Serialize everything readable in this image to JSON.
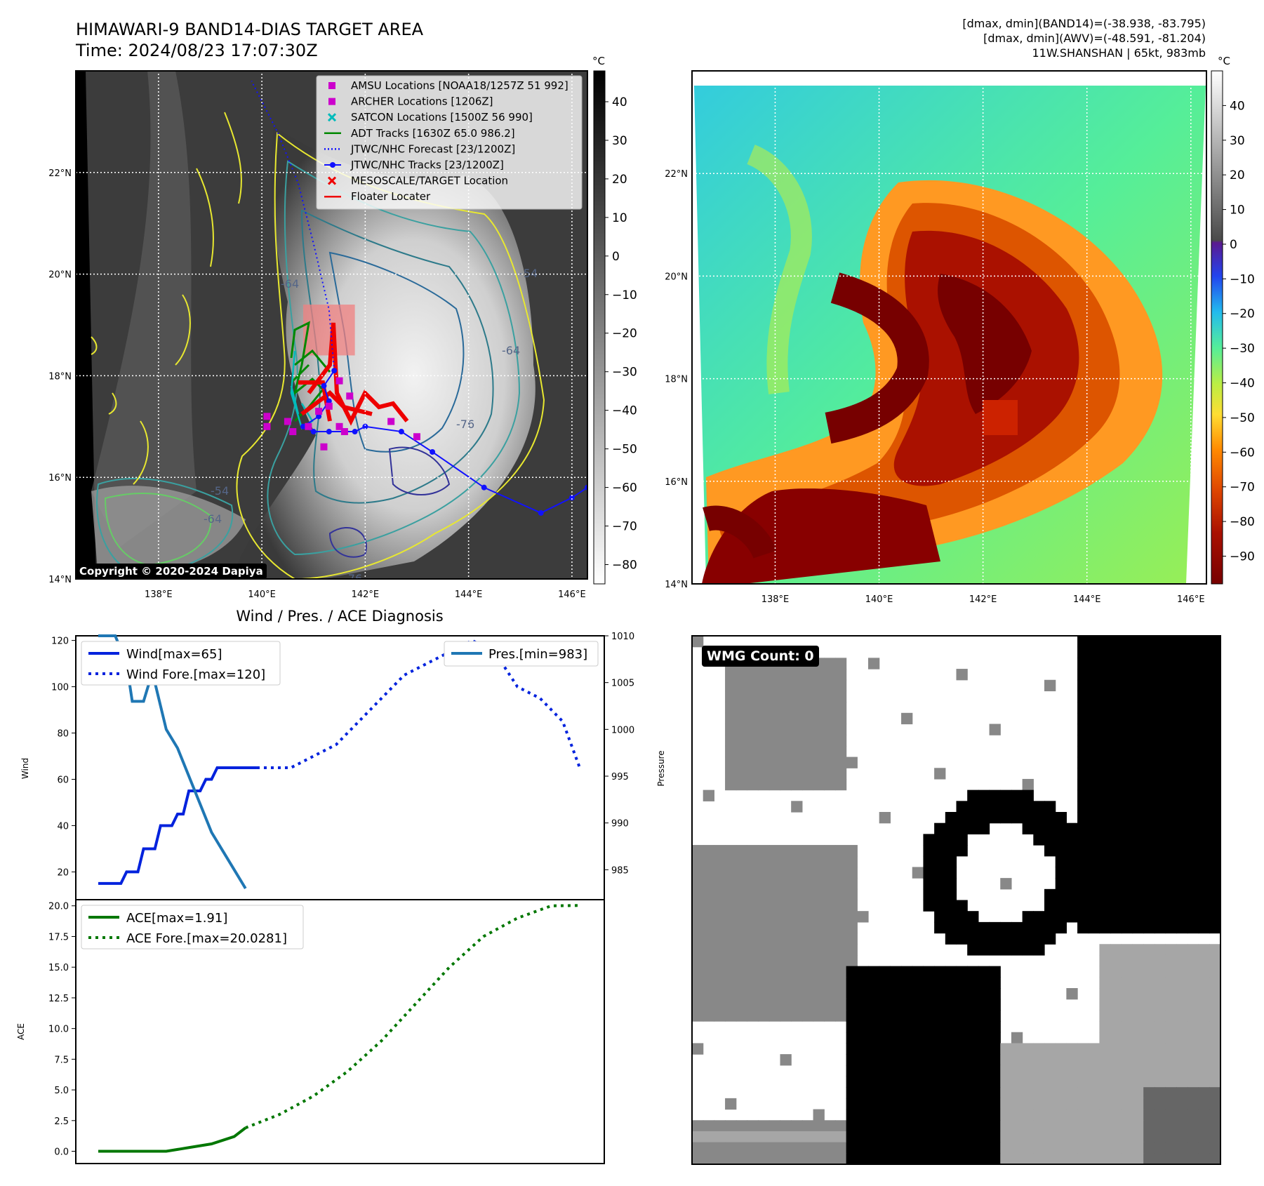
{
  "header": {
    "title": "HIMAWARI-9 BAND14-DIAS TARGET AREA",
    "time": "Time: 2024/08/23 17:07:30Z",
    "dmax_band14": "[dmax, dmin](BAND14)=(-38.938, -83.795)",
    "dmax_awv": "[dmax, dmin](AWV)=(-48.591, -81.204)",
    "storm": "11W.SHANSHAN | 65kt, 983mb"
  },
  "copyright": "Copyright © 2020-2024 Dapiya",
  "wmg_label": "WMG Count: 0",
  "colorbar_unit": "°C",
  "colors": {
    "wind": "#0022dd",
    "pressure": "#1f77b4",
    "ace": "#007700",
    "track": "#1111ff",
    "floater": "#ee0000",
    "amsu": "#cc00cc",
    "satcon": "#00bbbb",
    "adt": "#008800"
  },
  "chart_data": [
    {
      "type": "map",
      "name": "panel_band14",
      "xticks": [
        "138°E",
        "140°E",
        "142°E",
        "144°E",
        "146°E"
      ],
      "yticks": [
        "22°N",
        "20°N",
        "18°N",
        "16°N",
        "14°N"
      ],
      "lon_range": [
        136.4,
        146.3
      ],
      "lat_range": [
        14,
        24
      ],
      "colorbar": {
        "ticks": [
          40,
          30,
          20,
          10,
          0,
          -10,
          -20,
          -30,
          -40,
          -50,
          -60,
          -70,
          -80
        ],
        "range": [
          -85,
          48
        ],
        "colormap": "gray-reversed"
      },
      "legend": [
        {
          "label": "AMSU Locations [NOAA18/1257Z 51 992]",
          "marker": "square",
          "color": "#cc00cc"
        },
        {
          "label": "ARCHER Locations [1206Z]",
          "marker": "square",
          "color": "#cc00cc"
        },
        {
          "label": "SATCON Locations [1500Z 56 990]",
          "marker": "x",
          "color": "#00bbbb"
        },
        {
          "label": "ADT Tracks [1630Z 65.0 986.2]",
          "marker": "line",
          "color": "#008800"
        },
        {
          "label": "JTWC/NHC Forecast [23/1200Z]",
          "marker": "dotted",
          "color": "#1111ff"
        },
        {
          "label": "JTWC/NHC Tracks [23/1200Z]",
          "marker": "line-dot",
          "color": "#1111ff"
        },
        {
          "label": "MESOSCALE/TARGET Location",
          "marker": "x",
          "color": "#ee0000"
        },
        {
          "label": "Floater Locater",
          "marker": "line",
          "color": "#ee0000"
        }
      ],
      "contour_labels": [
        "-76",
        "-76",
        "-64",
        "-64",
        "-64",
        "-54",
        "-54"
      ],
      "jtwc_track": [
        [
          146.3,
          15.8
        ],
        [
          146.0,
          15.6
        ],
        [
          145.4,
          15.3
        ],
        [
          144.3,
          15.8
        ],
        [
          143.3,
          16.5
        ],
        [
          142.7,
          16.9
        ],
        [
          142.0,
          17.0
        ],
        [
          141.8,
          16.9
        ],
        [
          141.3,
          16.9
        ],
        [
          141.0,
          16.9
        ],
        [
          140.8,
          17.0
        ],
        [
          141.1,
          17.2
        ],
        [
          141.3,
          17.5
        ],
        [
          141.2,
          17.8
        ],
        [
          141.4,
          18.1
        ]
      ],
      "jtwc_forecast": [
        [
          141.4,
          18.1
        ],
        [
          141.3,
          19.3
        ],
        [
          141.0,
          20.6
        ],
        [
          140.7,
          21.8
        ],
        [
          140.3,
          22.8
        ],
        [
          139.8,
          23.8
        ]
      ],
      "amsu_points": [
        [
          140.1,
          17.2
        ],
        [
          140.1,
          17.0
        ],
        [
          140.6,
          16.9
        ],
        [
          140.9,
          17.0
        ],
        [
          141.1,
          17.3
        ],
        [
          141.3,
          17.4
        ],
        [
          141.5,
          17.9
        ],
        [
          141.7,
          17.6
        ],
        [
          141.5,
          17.0
        ],
        [
          141.6,
          16.9
        ],
        [
          141.2,
          16.6
        ],
        [
          142.5,
          17.1
        ],
        [
          143.0,
          16.8
        ],
        [
          140.5,
          17.1
        ]
      ],
      "target_box": [
        [
          140.8,
          18.4
        ],
        [
          141.8,
          19.4
        ]
      ]
    },
    {
      "type": "map",
      "name": "panel_awv",
      "xticks": [
        "138°E",
        "140°E",
        "142°E",
        "144°E",
        "146°E"
      ],
      "yticks": [
        "22°N",
        "20°N",
        "18°N",
        "16°N",
        "14°N"
      ],
      "colorbar": {
        "ticks": [
          40,
          30,
          20,
          10,
          0,
          -10,
          -20,
          -30,
          -40,
          -50,
          -60,
          -70,
          -80,
          -90
        ],
        "range": [
          -98,
          50
        ],
        "colormap": "awv"
      }
    },
    {
      "type": "line",
      "title": "Wind / Pres. / ACE Diagnosis",
      "ylabel": "Wind",
      "ylabel2": "Pressure",
      "yticks": [
        20,
        40,
        60,
        80,
        100,
        120
      ],
      "yticks2": [
        985,
        990,
        995,
        1000,
        1005,
        1010
      ],
      "ylim": [
        8,
        122
      ],
      "ylim2": [
        981.8,
        1010
      ],
      "series": [
        {
          "name": "Wind[max=65]",
          "style": "solid",
          "color": "#0022dd",
          "x": [
            0,
            1,
            2,
            3,
            4,
            5,
            6,
            7,
            8,
            9,
            10,
            11,
            12,
            13,
            14,
            15,
            16,
            17,
            18,
            19,
            20,
            21,
            22,
            23,
            24,
            25,
            26,
            27,
            28
          ],
          "y": [
            15,
            15,
            15,
            15,
            15,
            20,
            20,
            20,
            30,
            30,
            30,
            40,
            40,
            40,
            45,
            45,
            55,
            55,
            55,
            60,
            60,
            65,
            65,
            65,
            65,
            65,
            65,
            65,
            65
          ]
        },
        {
          "name": "Wind Fore.[max=120]",
          "style": "dotted",
          "color": "#0022dd",
          "x": [
            28,
            30,
            34,
            38,
            42,
            46,
            50,
            54,
            58,
            62,
            66,
            70,
            74,
            78,
            82,
            85
          ],
          "y": [
            65,
            65,
            65,
            70,
            75,
            85,
            95,
            105,
            110,
            115,
            120,
            115,
            100,
            95,
            85,
            65
          ]
        },
        {
          "name": "Pres.[min=983]",
          "style": "solid",
          "color": "#1f77b4",
          "axis": "right",
          "x": [
            0,
            3,
            5,
            6,
            8,
            9,
            10,
            12,
            14,
            16,
            18,
            20,
            22,
            24,
            26
          ],
          "y": [
            1010,
            1010,
            1007,
            1003,
            1003,
            1005,
            1005,
            1000,
            998,
            995,
            992,
            989,
            987,
            985,
            983
          ]
        }
      ]
    },
    {
      "type": "line",
      "ylabel": "ACE",
      "yticks": [
        0.0,
        2.5,
        5.0,
        7.5,
        10.0,
        12.5,
        15.0,
        17.5,
        20.0
      ],
      "ylim": [
        -1,
        20.5
      ],
      "series": [
        {
          "name": "ACE[max=1.91]",
          "style": "solid",
          "color": "#007700",
          "x": [
            0,
            4,
            8,
            12,
            16,
            20,
            24,
            26
          ],
          "y": [
            0,
            0,
            0,
            0,
            0.3,
            0.6,
            1.2,
            1.91
          ]
        },
        {
          "name": "ACE Fore.[max=20.0281]",
          "style": "dotted",
          "color": "#007700",
          "x": [
            26,
            32,
            38,
            44,
            50,
            56,
            62,
            68,
            74,
            80,
            85
          ],
          "y": [
            1.91,
            3,
            4.5,
            6.5,
            9,
            12,
            15,
            17.5,
            19,
            20.0,
            20.0281
          ]
        }
      ]
    }
  ]
}
